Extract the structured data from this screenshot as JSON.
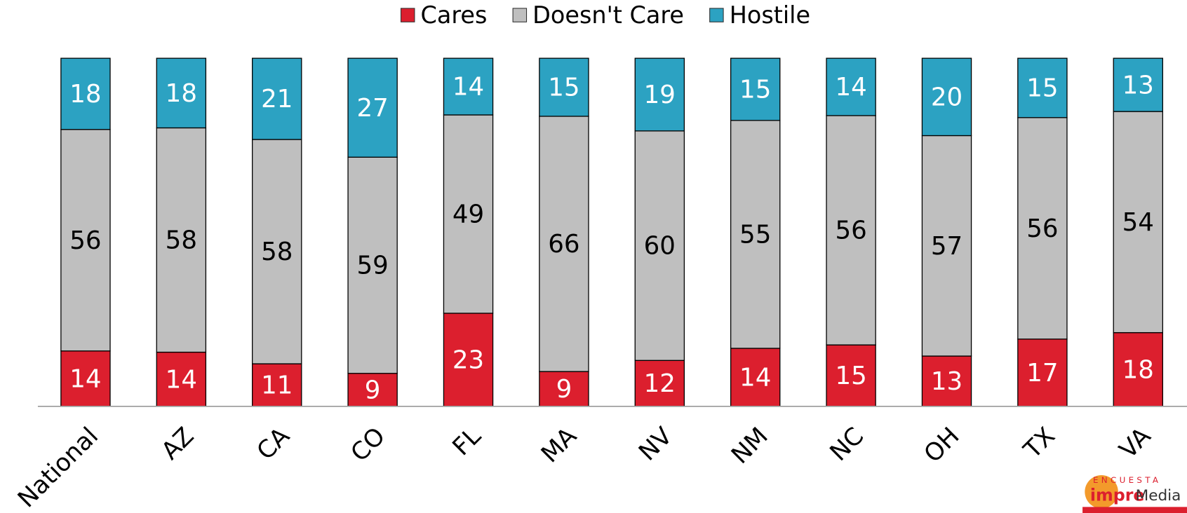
{
  "chart_data": {
    "type": "stacked_bar_100",
    "categories": [
      "National",
      "AZ",
      "CA",
      "CO",
      "FL",
      "MA",
      "NV",
      "NM",
      "NC",
      "OH",
      "TX",
      "VA"
    ],
    "series": [
      {
        "name": "Cares",
        "color": "#dc1f2e",
        "label_color": "#ffffff",
        "values": [
          14,
          14,
          11,
          9,
          23,
          9,
          12,
          14,
          15,
          13,
          17,
          18
        ]
      },
      {
        "name": "Doesn't Care",
        "color": "#bfbfbf",
        "label_color": "#000000",
        "values": [
          56,
          58,
          58,
          59,
          49,
          66,
          60,
          55,
          56,
          57,
          56,
          54
        ]
      },
      {
        "name": "Hostile",
        "color": "#2ca2c2",
        "label_color": "#ffffff",
        "values": [
          18,
          18,
          21,
          27,
          14,
          15,
          19,
          15,
          14,
          20,
          15,
          13
        ]
      }
    ],
    "legend": "top",
    "logo": {
      "top": "ENCUESTA",
      "brand_a": "impre",
      "brand_b": "Media"
    }
  }
}
